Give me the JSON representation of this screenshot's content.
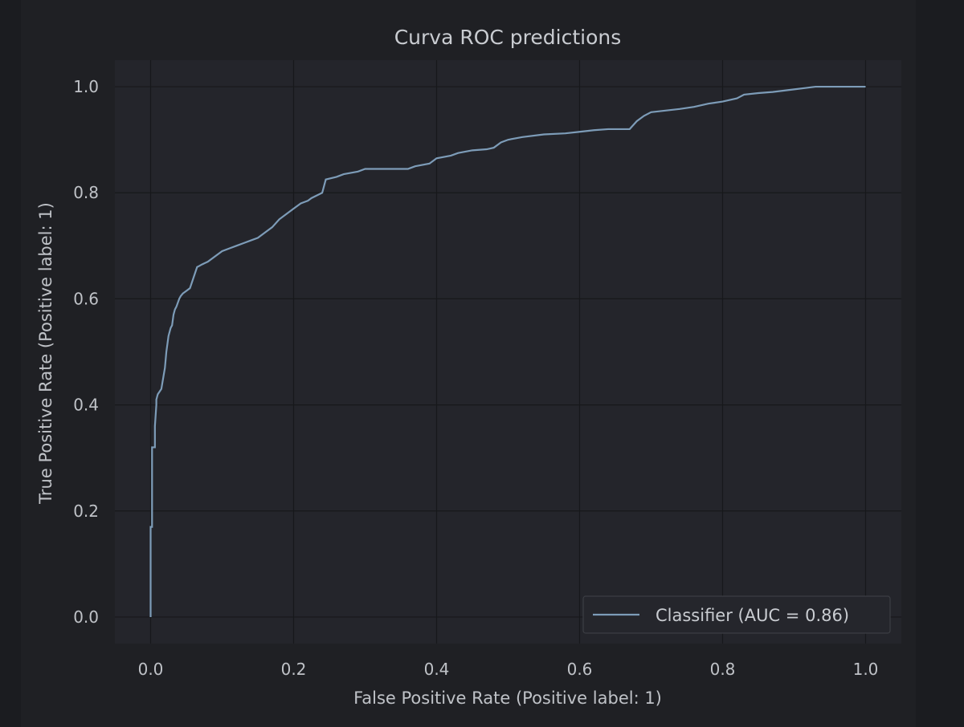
{
  "chart_data": {
    "type": "line",
    "title": "Curva ROC predictions",
    "xlabel": "False Positive Rate (Positive label: 1)",
    "ylabel": "True Positive Rate (Positive label: 1)",
    "xlim": [
      -0.05,
      1.05
    ],
    "ylim": [
      -0.05,
      1.05
    ],
    "xticks": [
      "0.0",
      "0.2",
      "0.4",
      "0.6",
      "0.8",
      "1.0"
    ],
    "yticks": [
      "0.0",
      "0.2",
      "0.4",
      "0.6",
      "0.8",
      "1.0"
    ],
    "grid": true,
    "legend_position": "lower-right",
    "colors": {
      "line": "#7d9cb8",
      "plot_background": "#24252b",
      "figure_background": "#1f2024",
      "grid": "#17181b"
    },
    "series": [
      {
        "name": "Classifier (AUC = 0.86)",
        "x": [
          0.0,
          0.0,
          0.002,
          0.002,
          0.006,
          0.006,
          0.008,
          0.008,
          0.01,
          0.015,
          0.02,
          0.022,
          0.025,
          0.028,
          0.03,
          0.032,
          0.034,
          0.036,
          0.04,
          0.042,
          0.045,
          0.05,
          0.055,
          0.06,
          0.065,
          0.068,
          0.072,
          0.08,
          0.1,
          0.11,
          0.12,
          0.13,
          0.14,
          0.15,
          0.16,
          0.17,
          0.18,
          0.19,
          0.2,
          0.21,
          0.22,
          0.225,
          0.24,
          0.245,
          0.26,
          0.27,
          0.29,
          0.3,
          0.32,
          0.34,
          0.36,
          0.37,
          0.39,
          0.4,
          0.42,
          0.43,
          0.45,
          0.47,
          0.48,
          0.49,
          0.5,
          0.52,
          0.55,
          0.58,
          0.6,
          0.62,
          0.64,
          0.66,
          0.67,
          0.68,
          0.69,
          0.7,
          0.72,
          0.74,
          0.76,
          0.78,
          0.8,
          0.82,
          0.83,
          0.85,
          0.87,
          0.9,
          0.93,
          0.95,
          1.0
        ],
        "y": [
          0.0,
          0.17,
          0.17,
          0.32,
          0.32,
          0.36,
          0.4,
          0.41,
          0.42,
          0.43,
          0.47,
          0.5,
          0.53,
          0.545,
          0.55,
          0.57,
          0.58,
          0.585,
          0.6,
          0.605,
          0.61,
          0.615,
          0.62,
          0.64,
          0.66,
          0.662,
          0.665,
          0.67,
          0.69,
          0.695,
          0.7,
          0.705,
          0.71,
          0.715,
          0.725,
          0.735,
          0.75,
          0.76,
          0.77,
          0.78,
          0.785,
          0.79,
          0.8,
          0.825,
          0.83,
          0.835,
          0.84,
          0.845,
          0.845,
          0.845,
          0.845,
          0.85,
          0.855,
          0.865,
          0.87,
          0.875,
          0.88,
          0.882,
          0.885,
          0.895,
          0.9,
          0.905,
          0.91,
          0.912,
          0.915,
          0.918,
          0.92,
          0.92,
          0.92,
          0.935,
          0.945,
          0.952,
          0.955,
          0.958,
          0.962,
          0.968,
          0.972,
          0.978,
          0.985,
          0.988,
          0.99,
          0.995,
          1.0,
          1.0,
          1.0
        ]
      }
    ]
  }
}
